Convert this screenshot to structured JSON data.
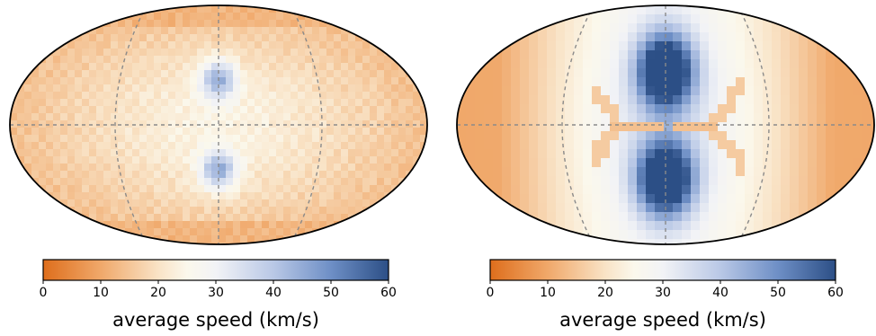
{
  "chart_data": [
    {
      "type": "heatmap",
      "projection": "elliptical sky map (Robinson-like)",
      "colormap": {
        "stops": [
          {
            "value": 0,
            "color": "#de6e1c"
          },
          {
            "value": 10,
            "color": "#f0a86a"
          },
          {
            "value": 20,
            "color": "#f9e3c6"
          },
          {
            "value": 25,
            "color": "#fbf8ec"
          },
          {
            "value": 30,
            "color": "#f2f3f6"
          },
          {
            "value": 40,
            "color": "#b9c8e6"
          },
          {
            "value": 50,
            "color": "#6e8fc6"
          },
          {
            "value": 60,
            "color": "#2c4f86"
          }
        ]
      },
      "colorbar": {
        "range": [
          0,
          60
        ],
        "ticks": [
          "0",
          "10",
          "20",
          "30",
          "40",
          "50",
          "60"
        ],
        "label": "average speed (km/s)"
      },
      "graticule": {
        "meridians": 3,
        "equator": true
      },
      "field": {
        "background": 18,
        "center_lobes": [
          {
            "dy": -0.38,
            "amplitude": 24,
            "rx": 0.085,
            "ry": 0.16
          },
          {
            "dy": 0.38,
            "amplitude": 24,
            "rx": 0.085,
            "ry": 0.16
          }
        ],
        "polar_band_value": 12,
        "rim_value": 14
      }
    },
    {
      "type": "heatmap",
      "projection": "elliptical sky map (Robinson-like)",
      "colormap": {
        "stops": [
          {
            "value": 0,
            "color": "#de6e1c"
          },
          {
            "value": 10,
            "color": "#f0a86a"
          },
          {
            "value": 20,
            "color": "#f9e3c6"
          },
          {
            "value": 25,
            "color": "#fbf8ec"
          },
          {
            "value": 30,
            "color": "#f2f3f6"
          },
          {
            "value": 40,
            "color": "#b9c8e6"
          },
          {
            "value": 50,
            "color": "#6e8fc6"
          },
          {
            "value": 60,
            "color": "#2c4f86"
          }
        ]
      },
      "colorbar": {
        "range": [
          0,
          60
        ],
        "ticks": [
          "0",
          "10",
          "20",
          "30",
          "40",
          "50",
          "60"
        ],
        "label": "average speed (km/s)"
      },
      "graticule": {
        "meridians": 3,
        "equator": true
      },
      "field": {
        "background": 10,
        "center_lobes": [
          {
            "dy": -0.45,
            "amplitude": 48,
            "rx": 0.13,
            "ry": 0.3
          },
          {
            "dy": 0.45,
            "amplitude": 48,
            "rx": 0.13,
            "ry": 0.3
          }
        ],
        "equator_band_value": 14,
        "pixelated": true
      }
    }
  ]
}
